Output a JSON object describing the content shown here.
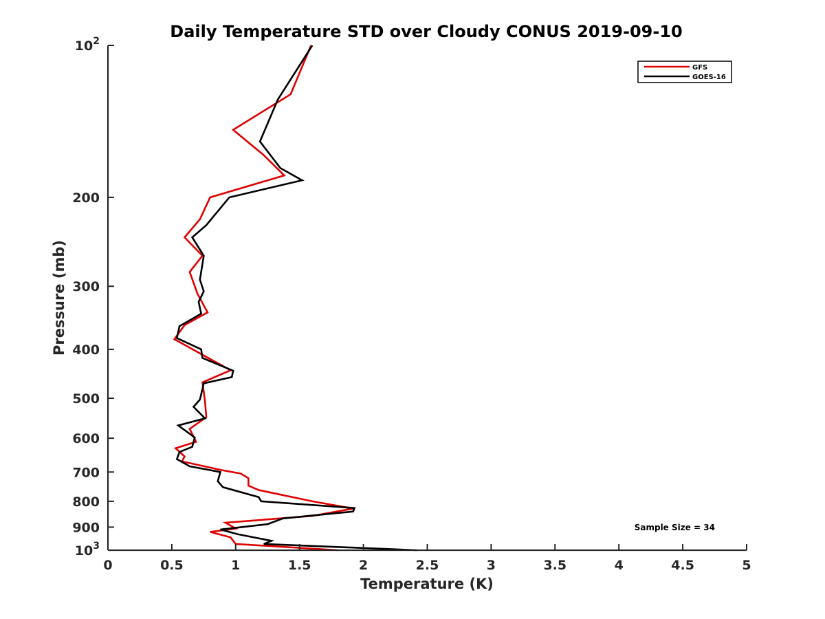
{
  "chart_data": {
    "type": "line",
    "title": "Daily Temperature STD over Cloudy CONUS 2019-09-10",
    "xlabel": "Temperature (K)",
    "ylabel": "Pressure (mb)",
    "xlim": [
      0,
      5
    ],
    "ylim": [
      100,
      1000
    ],
    "yscale": "log",
    "y_reversed": true,
    "x_ticks": [
      0,
      0.5,
      1,
      1.5,
      2,
      2.5,
      3,
      3.5,
      4,
      4.5,
      5
    ],
    "x_tick_labels": [
      "0",
      "0.5",
      "1",
      "1.5",
      "2",
      "2.5",
      "3",
      "3.5",
      "4",
      "4.5",
      "5"
    ],
    "y_ticks": [
      100,
      200,
      300,
      400,
      500,
      600,
      700,
      800,
      900,
      1000
    ],
    "y_tick_labels": [
      {
        "base": "10",
        "exp": "2"
      },
      {
        "base": "200",
        "exp": ""
      },
      {
        "base": "300",
        "exp": ""
      },
      {
        "base": "400",
        "exp": ""
      },
      {
        "base": "500",
        "exp": ""
      },
      {
        "base": "600",
        "exp": ""
      },
      {
        "base": "700",
        "exp": ""
      },
      {
        "base": "800",
        "exp": ""
      },
      {
        "base": "900",
        "exp": ""
      },
      {
        "base": "10",
        "exp": "3"
      }
    ],
    "legend_location": "top-right",
    "annotation": "Sample Size = 34",
    "series": [
      {
        "name": "GFS",
        "color": "#e00000",
        "points": [
          [
            1.59,
            100
          ],
          [
            1.43,
            125
          ],
          [
            0.98,
            147
          ],
          [
            1.22,
            165
          ],
          [
            1.38,
            181
          ],
          [
            0.8,
            200
          ],
          [
            0.72,
            221
          ],
          [
            0.6,
            240
          ],
          [
            0.74,
            261
          ],
          [
            0.64,
            281
          ],
          [
            0.7,
            310
          ],
          [
            0.78,
            338
          ],
          [
            0.6,
            358
          ],
          [
            0.52,
            382
          ],
          [
            0.74,
            410
          ],
          [
            0.96,
            440
          ],
          [
            0.74,
            465
          ],
          [
            0.76,
            507
          ],
          [
            0.77,
            545
          ],
          [
            0.64,
            575
          ],
          [
            0.69,
            610
          ],
          [
            0.53,
            628
          ],
          [
            0.6,
            652
          ],
          [
            0.58,
            667
          ],
          [
            0.88,
            693
          ],
          [
            1.04,
            705
          ],
          [
            1.1,
            720
          ],
          [
            1.1,
            745
          ],
          [
            1.18,
            760
          ],
          [
            1.6,
            800
          ],
          [
            1.92,
            827
          ],
          [
            1.6,
            855
          ],
          [
            0.92,
            882
          ],
          [
            1.0,
            906
          ],
          [
            0.8,
            920
          ],
          [
            0.96,
            943
          ],
          [
            1.0,
            972
          ],
          [
            1.8,
            1000
          ]
        ]
      },
      {
        "name": "GOES-16",
        "color": "#000000",
        "points": [
          [
            1.6,
            100
          ],
          [
            1.33,
            128
          ],
          [
            1.19,
            155
          ],
          [
            1.35,
            175
          ],
          [
            1.52,
            185
          ],
          [
            0.95,
            200
          ],
          [
            0.77,
            227
          ],
          [
            0.66,
            240
          ],
          [
            0.75,
            261
          ],
          [
            0.72,
            291
          ],
          [
            0.75,
            307
          ],
          [
            0.71,
            322
          ],
          [
            0.73,
            340
          ],
          [
            0.56,
            360
          ],
          [
            0.54,
            380
          ],
          [
            0.73,
            400
          ],
          [
            0.74,
            416
          ],
          [
            0.98,
            441
          ],
          [
            0.97,
            454
          ],
          [
            0.75,
            467
          ],
          [
            0.72,
            503
          ],
          [
            0.67,
            520
          ],
          [
            0.76,
            548
          ],
          [
            0.55,
            566
          ],
          [
            0.68,
            598
          ],
          [
            0.66,
            624
          ],
          [
            0.56,
            639
          ],
          [
            0.54,
            660
          ],
          [
            0.64,
            682
          ],
          [
            0.88,
            700
          ],
          [
            0.86,
            730
          ],
          [
            0.9,
            750
          ],
          [
            1.18,
            785
          ],
          [
            1.2,
            800
          ],
          [
            1.93,
            825
          ],
          [
            1.92,
            838
          ],
          [
            1.37,
            865
          ],
          [
            1.25,
            888
          ],
          [
            0.88,
            910
          ],
          [
            1.02,
            930
          ],
          [
            1.28,
            958
          ],
          [
            1.22,
            972
          ],
          [
            2.42,
            1000
          ]
        ]
      }
    ]
  }
}
